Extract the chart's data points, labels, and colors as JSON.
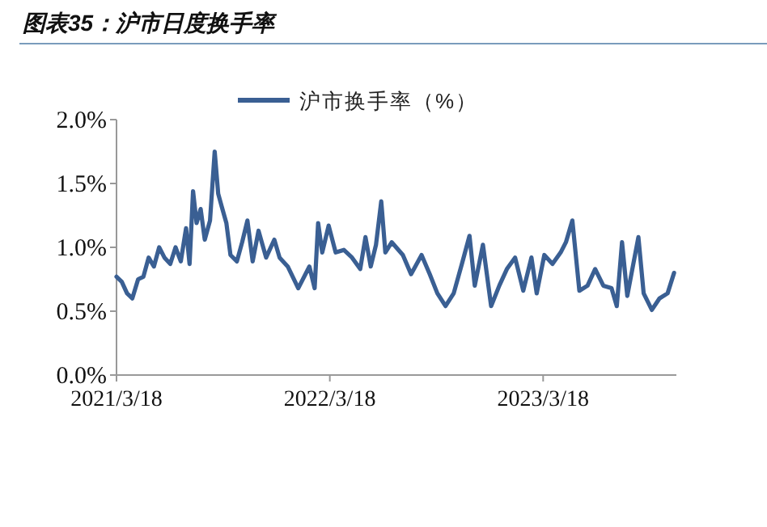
{
  "chart_data": {
    "type": "line",
    "title": "图表35：沪市日度换手率",
    "xlim": [
      "2021-03-18",
      "2023-11-01"
    ],
    "xticks": [
      {
        "value": "2021-03-18",
        "label": "2021/3/18"
      },
      {
        "value": "2022-03-18",
        "label": "2022/3/18"
      },
      {
        "value": "2023-03-18",
        "label": "2023/3/18"
      }
    ],
    "ylim": [
      0,
      2
    ],
    "yticks": [
      {
        "value": 0,
        "label": "0.0%"
      },
      {
        "value": 0.5,
        "label": "0.5%"
      },
      {
        "value": 1,
        "label": "1.0%"
      },
      {
        "value": 1.5,
        "label": "1.5%"
      },
      {
        "value": 2,
        "label": "2.0%"
      }
    ],
    "grid": false,
    "legend": "top",
    "marker": "none",
    "line_style": "solid",
    "x": [
      "2021-03-18",
      "2021-03-27",
      "2021-04-05",
      "2021-04-14",
      "2021-04-24",
      "2021-05-03",
      "2021-05-12",
      "2021-05-21",
      "2021-05-30",
      "2021-06-08",
      "2021-06-18",
      "2021-06-27",
      "2021-07-06",
      "2021-07-15",
      "2021-07-21",
      "2021-07-27",
      "2021-08-02",
      "2021-08-09",
      "2021-08-16",
      "2021-08-25",
      "2021-09-02",
      "2021-09-08",
      "2021-09-14",
      "2021-09-22",
      "2021-09-29",
      "2021-10-10",
      "2021-10-19",
      "2021-10-28",
      "2021-11-06",
      "2021-11-16",
      "2021-11-29",
      "2021-12-13",
      "2021-12-22",
      "2022-01-05",
      "2022-01-23",
      "2022-02-11",
      "2022-02-20",
      "2022-02-26",
      "2022-03-05",
      "2022-03-16",
      "2022-03-28",
      "2022-04-11",
      "2022-04-25",
      "2022-05-09",
      "2022-05-18",
      "2022-05-27",
      "2022-06-05",
      "2022-06-14",
      "2022-06-21",
      "2022-07-02",
      "2022-07-21",
      "2022-08-04",
      "2022-08-22",
      "2022-09-05",
      "2022-09-18",
      "2022-10-02",
      "2022-10-16",
      "2022-10-30",
      "2022-11-12",
      "2022-11-21",
      "2022-12-05",
      "2022-12-19",
      "2023-01-02",
      "2023-01-15",
      "2023-01-29",
      "2023-02-12",
      "2023-02-26",
      "2023-03-07",
      "2023-03-20",
      "2023-04-03",
      "2023-04-17",
      "2023-04-26",
      "2023-05-07",
      "2023-05-19",
      "2023-06-02",
      "2023-06-15",
      "2023-06-29",
      "2023-07-13",
      "2023-07-22",
      "2023-07-31",
      "2023-08-09",
      "2023-08-28",
      "2023-09-06",
      "2023-09-20",
      "2023-10-03",
      "2023-10-17",
      "2023-10-28"
    ],
    "series": [
      {
        "name": "沪市换手率（%）",
        "color": "#3a5f93",
        "values": [
          0.77,
          0.73,
          0.64,
          0.6,
          0.75,
          0.77,
          0.92,
          0.85,
          1.0,
          0.92,
          0.87,
          1.0,
          0.89,
          1.15,
          0.87,
          1.44,
          1.19,
          1.3,
          1.06,
          1.21,
          1.75,
          1.42,
          1.32,
          1.19,
          0.94,
          0.89,
          1.04,
          1.21,
          0.89,
          1.13,
          0.92,
          1.06,
          0.92,
          0.85,
          0.68,
          0.85,
          0.68,
          1.19,
          0.96,
          1.17,
          0.96,
          0.98,
          0.92,
          0.83,
          1.08,
          0.85,
          1.02,
          1.36,
          0.96,
          1.04,
          0.94,
          0.79,
          0.94,
          0.79,
          0.64,
          0.54,
          0.64,
          0.87,
          1.09,
          0.7,
          1.02,
          0.54,
          0.7,
          0.83,
          0.92,
          0.66,
          0.92,
          0.64,
          0.94,
          0.87,
          0.96,
          1.04,
          1.21,
          0.66,
          0.7,
          0.83,
          0.7,
          0.68,
          0.54,
          1.04,
          0.62,
          1.08,
          0.64,
          0.51,
          0.6,
          0.64,
          0.8
        ]
      }
    ]
  }
}
